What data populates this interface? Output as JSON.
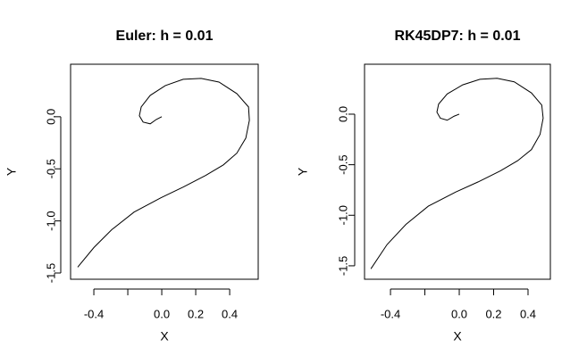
{
  "chart_data": [
    {
      "type": "line",
      "title": "Euler: h = 0.01",
      "x_label": "X",
      "y_label": "Y",
      "color": "#000000",
      "x": [
        0,
        -0.032,
        -0.068,
        -0.11,
        -0.132,
        -0.121,
        -0.068,
        0.021,
        0.126,
        0.232,
        0.337,
        0.442,
        0.511,
        0.516,
        0.495,
        0.442,
        0.363,
        0.258,
        0.126,
        -0.005,
        -0.163,
        -0.295,
        -0.4,
        -0.495
      ],
      "values": [
        0,
        -0.026,
        -0.068,
        -0.051,
        0.009,
        0.094,
        0.205,
        0.299,
        0.359,
        0.368,
        0.333,
        0.222,
        0.094,
        -0.034,
        -0.205,
        -0.35,
        -0.462,
        -0.564,
        -0.675,
        -0.778,
        -0.915,
        -1.085,
        -1.256,
        -1.444
      ],
      "xlim": [
        -0.537,
        0.568
      ],
      "ylim": [
        -1.56,
        0.504
      ],
      "xticks": [
        {
          "value": -0.4,
          "label": "-0.4"
        },
        {
          "value": -0.2,
          "label": null
        },
        {
          "value": 0,
          "label": "0.0"
        },
        {
          "value": 0.2,
          "label": "0.2"
        },
        {
          "value": 0.4,
          "label": "0.4"
        }
      ],
      "yticks": [
        {
          "value": 0,
          "label": "0.0"
        },
        -0.5,
        {
          "value": -1,
          "label": "-1.0"
        },
        -1.5
      ]
    },
    {
      "type": "line",
      "title": "RK45DP7: h = 0.01",
      "x_label": "X",
      "y_label": "Y",
      "color": "#000000",
      "x": [
        0,
        -0.03,
        -0.07,
        -0.11,
        -0.13,
        -0.12,
        -0.07,
        0.02,
        0.12,
        0.22,
        0.32,
        0.42,
        0.48,
        0.488,
        0.47,
        0.42,
        0.34,
        0.24,
        0.11,
        -0.02,
        -0.18,
        -0.31,
        -0.42,
        -0.514
      ],
      "values": [
        0,
        -0.02,
        -0.06,
        -0.04,
        0.02,
        0.1,
        0.2,
        0.29,
        0.345,
        0.355,
        0.32,
        0.21,
        0.09,
        -0.04,
        -0.2,
        -0.35,
        -0.46,
        -0.56,
        -0.67,
        -0.77,
        -0.91,
        -1.09,
        -1.29,
        -1.53
      ],
      "xlim": [
        -0.551,
        0.53
      ],
      "ylim": [
        -1.633,
        0.494
      ],
      "xticks": [
        {
          "value": -0.4,
          "label": "-0.4"
        },
        {
          "value": -0.2,
          "label": null
        },
        {
          "value": 0,
          "label": "0.0"
        },
        {
          "value": 0.2,
          "label": "0.2"
        },
        {
          "value": 0.4,
          "label": "0.4"
        }
      ],
      "yticks": [
        {
          "value": 0,
          "label": "0.0"
        },
        -0.5,
        {
          "value": -1,
          "label": "-1.0"
        },
        -1.5
      ]
    }
  ]
}
